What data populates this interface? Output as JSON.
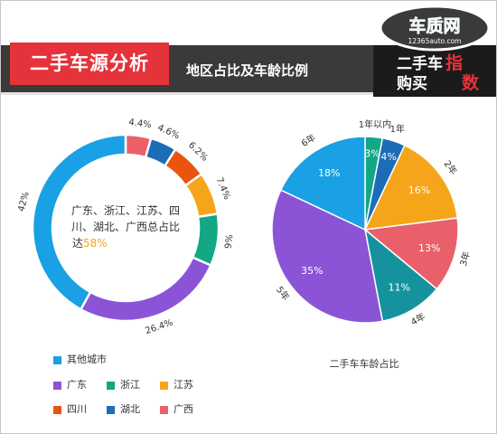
{
  "header": {
    "title": "二手车源分析",
    "subtitle": "地区占比及车龄比例"
  },
  "brand": {
    "site_name": "车质网",
    "site_url": "12365auto.com",
    "column_line1": "二手车",
    "column_line2": "购买",
    "column_badge1": "指",
    "column_badge2": "数"
  },
  "chart_data": [
    {
      "type": "donut",
      "series": [
        {
          "name": "广西",
          "value": 4.4,
          "label": "4.4%",
          "color": "#e9606a"
        },
        {
          "name": "湖北",
          "value": 4.6,
          "label": "4.6%",
          "color": "#1d6cb8"
        },
        {
          "name": "四川",
          "value": 6.2,
          "label": "6.2%",
          "color": "#e9540e"
        },
        {
          "name": "江苏",
          "value": 7.4,
          "label": "7.4%",
          "color": "#f6a51a"
        },
        {
          "name": "浙江",
          "value": 9,
          "label": "9%",
          "color": "#12a785"
        },
        {
          "name": "广东",
          "value": 26.4,
          "label": "26.4%",
          "color": "#8b54d6"
        },
        {
          "name": "其他城市",
          "value": 42,
          "label": "42%",
          "color": "#1aa0e4"
        }
      ],
      "center_text": {
        "line1": "广东、浙江、江苏、四",
        "line2": "川、湖北、广西总占比",
        "line3_prefix": "达",
        "highlight": "58%",
        "highlight_color": "#f6a51a"
      },
      "legend": [
        {
          "label": "其他城市",
          "color": "#1aa0e4"
        },
        {
          "label": "广东",
          "color": "#8b54d6"
        },
        {
          "label": "浙江",
          "color": "#12a785"
        },
        {
          "label": "江苏",
          "color": "#f6a51a"
        },
        {
          "label": "四川",
          "color": "#e9540e"
        },
        {
          "label": "湖北",
          "color": "#1d6cb8"
        },
        {
          "label": "广西",
          "color": "#e9606a"
        }
      ]
    },
    {
      "type": "pie",
      "title": "二手车车龄占比",
      "series": [
        {
          "name": "1年以内",
          "value": 3,
          "label": "3%",
          "color": "#12a785"
        },
        {
          "name": "1年",
          "value": 4,
          "label": "4%",
          "color": "#1d6cb8"
        },
        {
          "name": "2年",
          "value": 16,
          "label": "16%",
          "color": "#f6a51a"
        },
        {
          "name": "3年",
          "value": 13,
          "label": "13%",
          "color": "#e9606a"
        },
        {
          "name": "4年",
          "value": 11,
          "label": "11%",
          "color": "#14939e"
        },
        {
          "name": "5年",
          "value": 35,
          "label": "35%",
          "color": "#8b54d6"
        },
        {
          "name": "6年",
          "value": 18,
          "label": "18%",
          "color": "#1aa0e4"
        }
      ]
    }
  ]
}
